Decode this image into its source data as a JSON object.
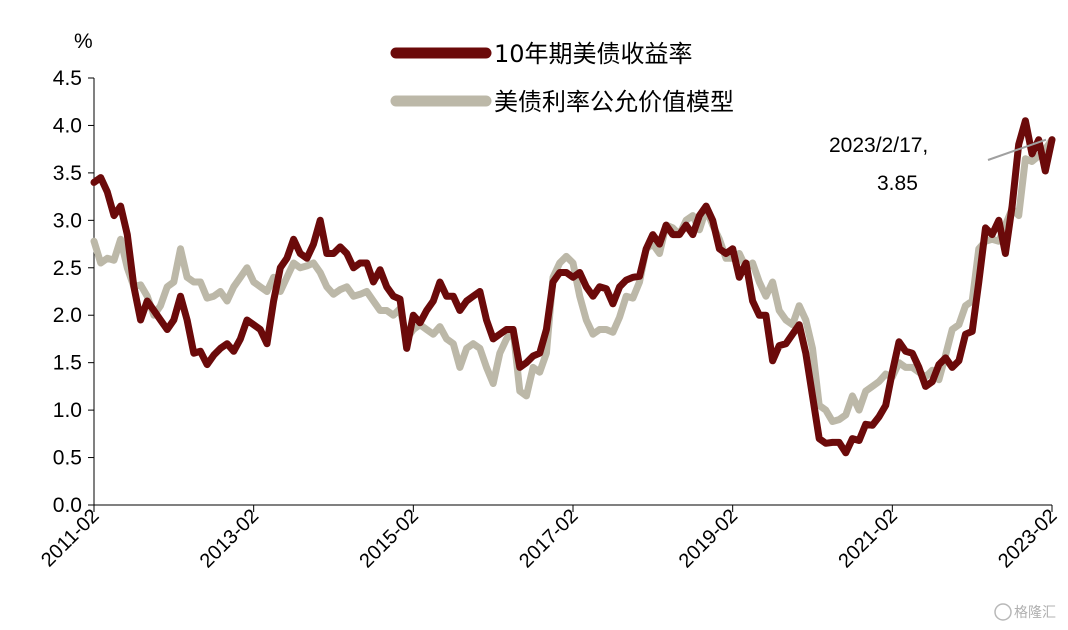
{
  "chart_data": {
    "type": "line",
    "y_unit": "%",
    "ylim": [
      0,
      4.5
    ],
    "y_ticks": [
      "0.0",
      "0.5",
      "1.0",
      "1.5",
      "2.0",
      "2.5",
      "3.0",
      "3.5",
      "4.0",
      "4.5"
    ],
    "x_start": "2011-02",
    "x_end": "2023-02",
    "x_ticks": [
      "2011-02",
      "2013-02",
      "2015-02",
      "2017-02",
      "2019-02",
      "2021-02",
      "2023-02"
    ],
    "grid": false,
    "legend_position": "top-center",
    "series": [
      {
        "name": "10年期美债收益率",
        "color": "#6b0a0a",
        "points": [
          [
            "2011-02",
            3.4
          ],
          [
            "2011-03",
            3.45
          ],
          [
            "2011-04",
            3.3
          ],
          [
            "2011-05",
            3.05
          ],
          [
            "2011-06",
            3.15
          ],
          [
            "2011-07",
            2.85
          ],
          [
            "2011-08",
            2.3
          ],
          [
            "2011-09",
            1.95
          ],
          [
            "2011-10",
            2.15
          ],
          [
            "2011-11",
            2.05
          ],
          [
            "2011-12",
            1.95
          ],
          [
            "2012-01",
            1.85
          ],
          [
            "2012-02",
            1.95
          ],
          [
            "2012-03",
            2.2
          ],
          [
            "2012-04",
            1.95
          ],
          [
            "2012-05",
            1.6
          ],
          [
            "2012-06",
            1.62
          ],
          [
            "2012-07",
            1.48
          ],
          [
            "2012-08",
            1.58
          ],
          [
            "2012-09",
            1.65
          ],
          [
            "2012-10",
            1.7
          ],
          [
            "2012-11",
            1.62
          ],
          [
            "2012-12",
            1.75
          ],
          [
            "2013-01",
            1.95
          ],
          [
            "2013-02",
            1.9
          ],
          [
            "2013-03",
            1.85
          ],
          [
            "2013-04",
            1.7
          ],
          [
            "2013-05",
            2.15
          ],
          [
            "2013-06",
            2.5
          ],
          [
            "2013-07",
            2.6
          ],
          [
            "2013-08",
            2.8
          ],
          [
            "2013-09",
            2.65
          ],
          [
            "2013-10",
            2.6
          ],
          [
            "2013-11",
            2.75
          ],
          [
            "2013-12",
            3.0
          ],
          [
            "2014-01",
            2.65
          ],
          [
            "2014-02",
            2.65
          ],
          [
            "2014-03",
            2.72
          ],
          [
            "2014-04",
            2.65
          ],
          [
            "2014-05",
            2.5
          ],
          [
            "2014-06",
            2.55
          ],
          [
            "2014-07",
            2.55
          ],
          [
            "2014-08",
            2.35
          ],
          [
            "2014-09",
            2.48
          ],
          [
            "2014-10",
            2.3
          ],
          [
            "2014-11",
            2.2
          ],
          [
            "2014-12",
            2.17
          ],
          [
            "2015-01",
            1.65
          ],
          [
            "2015-02",
            2.0
          ],
          [
            "2015-03",
            1.92
          ],
          [
            "2015-04",
            2.05
          ],
          [
            "2015-05",
            2.15
          ],
          [
            "2015-06",
            2.35
          ],
          [
            "2015-07",
            2.2
          ],
          [
            "2015-08",
            2.2
          ],
          [
            "2015-09",
            2.05
          ],
          [
            "2015-10",
            2.15
          ],
          [
            "2015-11",
            2.2
          ],
          [
            "2015-12",
            2.25
          ],
          [
            "2016-01",
            1.95
          ],
          [
            "2016-02",
            1.75
          ],
          [
            "2016-03",
            1.8
          ],
          [
            "2016-04",
            1.85
          ],
          [
            "2016-05",
            1.85
          ],
          [
            "2016-06",
            1.45
          ],
          [
            "2016-07",
            1.5
          ],
          [
            "2016-08",
            1.57
          ],
          [
            "2016-09",
            1.6
          ],
          [
            "2016-10",
            1.85
          ],
          [
            "2016-11",
            2.35
          ],
          [
            "2016-12",
            2.45
          ],
          [
            "2017-01",
            2.45
          ],
          [
            "2017-02",
            2.4
          ],
          [
            "2017-03",
            2.45
          ],
          [
            "2017-04",
            2.3
          ],
          [
            "2017-05",
            2.2
          ],
          [
            "2017-06",
            2.3
          ],
          [
            "2017-07",
            2.28
          ],
          [
            "2017-08",
            2.12
          ],
          [
            "2017-09",
            2.3
          ],
          [
            "2017-10",
            2.37
          ],
          [
            "2017-11",
            2.4
          ],
          [
            "2017-12",
            2.41
          ],
          [
            "2018-01",
            2.7
          ],
          [
            "2018-02",
            2.85
          ],
          [
            "2018-03",
            2.75
          ],
          [
            "2018-04",
            2.95
          ],
          [
            "2018-05",
            2.85
          ],
          [
            "2018-06",
            2.85
          ],
          [
            "2018-07",
            2.95
          ],
          [
            "2018-08",
            2.85
          ],
          [
            "2018-09",
            3.05
          ],
          [
            "2018-10",
            3.15
          ],
          [
            "2018-11",
            3.0
          ],
          [
            "2018-12",
            2.7
          ],
          [
            "2019-01",
            2.65
          ],
          [
            "2019-02",
            2.7
          ],
          [
            "2019-03",
            2.4
          ],
          [
            "2019-04",
            2.55
          ],
          [
            "2019-05",
            2.15
          ],
          [
            "2019-06",
            2.0
          ],
          [
            "2019-07",
            2.0
          ],
          [
            "2019-08",
            1.52
          ],
          [
            "2019-09",
            1.68
          ],
          [
            "2019-10",
            1.7
          ],
          [
            "2019-11",
            1.8
          ],
          [
            "2019-12",
            1.9
          ],
          [
            "2020-01",
            1.6
          ],
          [
            "2020-02",
            1.15
          ],
          [
            "2020-03",
            0.7
          ],
          [
            "2020-04",
            0.65
          ],
          [
            "2020-05",
            0.66
          ],
          [
            "2020-06",
            0.66
          ],
          [
            "2020-07",
            0.55
          ],
          [
            "2020-08",
            0.7
          ],
          [
            "2020-09",
            0.68
          ],
          [
            "2020-10",
            0.85
          ],
          [
            "2020-11",
            0.84
          ],
          [
            "2020-12",
            0.93
          ],
          [
            "2021-01",
            1.05
          ],
          [
            "2021-02",
            1.4
          ],
          [
            "2021-03",
            1.72
          ],
          [
            "2021-04",
            1.62
          ],
          [
            "2021-05",
            1.6
          ],
          [
            "2021-06",
            1.45
          ],
          [
            "2021-07",
            1.25
          ],
          [
            "2021-08",
            1.3
          ],
          [
            "2021-09",
            1.48
          ],
          [
            "2021-10",
            1.55
          ],
          [
            "2021-11",
            1.45
          ],
          [
            "2021-12",
            1.52
          ],
          [
            "2022-01",
            1.8
          ],
          [
            "2022-02",
            1.83
          ],
          [
            "2022-03",
            2.35
          ],
          [
            "2022-04",
            2.92
          ],
          [
            "2022-05",
            2.85
          ],
          [
            "2022-06",
            3.0
          ],
          [
            "2022-07",
            2.65
          ],
          [
            "2022-08",
            3.15
          ],
          [
            "2022-09",
            3.8
          ],
          [
            "2022-10",
            4.05
          ],
          [
            "2022-11",
            3.7
          ],
          [
            "2022-12",
            3.85
          ],
          [
            "2023-01",
            3.52
          ],
          [
            "2023-02",
            3.85
          ]
        ]
      },
      {
        "name": "美债利率公允价值模型",
        "color": "#bcb8a8",
        "points": [
          [
            "2011-02",
            2.78
          ],
          [
            "2011-03",
            2.55
          ],
          [
            "2011-04",
            2.6
          ],
          [
            "2011-05",
            2.58
          ],
          [
            "2011-06",
            2.8
          ],
          [
            "2011-07",
            2.5
          ],
          [
            "2011-08",
            2.3
          ],
          [
            "2011-09",
            2.32
          ],
          [
            "2011-10",
            2.2
          ],
          [
            "2011-11",
            2.0
          ],
          [
            "2011-12",
            2.1
          ],
          [
            "2012-01",
            2.3
          ],
          [
            "2012-02",
            2.35
          ],
          [
            "2012-03",
            2.7
          ],
          [
            "2012-04",
            2.4
          ],
          [
            "2012-05",
            2.35
          ],
          [
            "2012-06",
            2.35
          ],
          [
            "2012-07",
            2.18
          ],
          [
            "2012-08",
            2.2
          ],
          [
            "2012-09",
            2.25
          ],
          [
            "2012-10",
            2.15
          ],
          [
            "2012-11",
            2.3
          ],
          [
            "2012-12",
            2.4
          ],
          [
            "2013-01",
            2.5
          ],
          [
            "2013-02",
            2.35
          ],
          [
            "2013-03",
            2.3
          ],
          [
            "2013-04",
            2.25
          ],
          [
            "2013-05",
            2.4
          ],
          [
            "2013-06",
            2.25
          ],
          [
            "2013-07",
            2.4
          ],
          [
            "2013-08",
            2.55
          ],
          [
            "2013-09",
            2.5
          ],
          [
            "2013-10",
            2.52
          ],
          [
            "2013-11",
            2.55
          ],
          [
            "2013-12",
            2.45
          ],
          [
            "2014-01",
            2.3
          ],
          [
            "2014-02",
            2.22
          ],
          [
            "2014-03",
            2.27
          ],
          [
            "2014-04",
            2.3
          ],
          [
            "2014-05",
            2.2
          ],
          [
            "2014-06",
            2.22
          ],
          [
            "2014-07",
            2.25
          ],
          [
            "2014-08",
            2.15
          ],
          [
            "2014-09",
            2.05
          ],
          [
            "2014-10",
            2.05
          ],
          [
            "2014-11",
            2.0
          ],
          [
            "2014-12",
            2.07
          ],
          [
            "2015-01",
            1.75
          ],
          [
            "2015-02",
            1.85
          ],
          [
            "2015-03",
            1.9
          ],
          [
            "2015-04",
            1.85
          ],
          [
            "2015-05",
            1.8
          ],
          [
            "2015-06",
            1.88
          ],
          [
            "2015-07",
            1.75
          ],
          [
            "2015-08",
            1.7
          ],
          [
            "2015-09",
            1.45
          ],
          [
            "2015-10",
            1.65
          ],
          [
            "2015-11",
            1.7
          ],
          [
            "2015-12",
            1.65
          ],
          [
            "2016-01",
            1.45
          ],
          [
            "2016-02",
            1.28
          ],
          [
            "2016-03",
            1.6
          ],
          [
            "2016-04",
            1.75
          ],
          [
            "2016-05",
            1.85
          ],
          [
            "2016-06",
            1.2
          ],
          [
            "2016-07",
            1.15
          ],
          [
            "2016-08",
            1.45
          ],
          [
            "2016-09",
            1.4
          ],
          [
            "2016-10",
            1.6
          ],
          [
            "2016-11",
            2.4
          ],
          [
            "2016-12",
            2.55
          ],
          [
            "2017-01",
            2.62
          ],
          [
            "2017-02",
            2.55
          ],
          [
            "2017-03",
            2.2
          ],
          [
            "2017-04",
            1.95
          ],
          [
            "2017-05",
            1.8
          ],
          [
            "2017-06",
            1.85
          ],
          [
            "2017-07",
            1.85
          ],
          [
            "2017-08",
            1.82
          ],
          [
            "2017-09",
            1.98
          ],
          [
            "2017-10",
            2.2
          ],
          [
            "2017-11",
            2.18
          ],
          [
            "2017-12",
            2.35
          ],
          [
            "2018-01",
            2.7
          ],
          [
            "2018-02",
            2.75
          ],
          [
            "2018-03",
            2.65
          ],
          [
            "2018-04",
            2.95
          ],
          [
            "2018-05",
            2.92
          ],
          [
            "2018-06",
            2.85
          ],
          [
            "2018-07",
            3.0
          ],
          [
            "2018-08",
            3.05
          ],
          [
            "2018-09",
            2.9
          ],
          [
            "2018-10",
            3.12
          ],
          [
            "2018-11",
            2.95
          ],
          [
            "2018-12",
            2.8
          ],
          [
            "2019-01",
            2.6
          ],
          [
            "2019-02",
            2.6
          ],
          [
            "2019-03",
            2.65
          ],
          [
            "2019-04",
            2.5
          ],
          [
            "2019-05",
            2.55
          ],
          [
            "2019-06",
            2.35
          ],
          [
            "2019-07",
            2.2
          ],
          [
            "2019-08",
            2.35
          ],
          [
            "2019-09",
            2.05
          ],
          [
            "2019-10",
            1.95
          ],
          [
            "2019-11",
            1.9
          ],
          [
            "2019-12",
            2.1
          ],
          [
            "2020-01",
            1.95
          ],
          [
            "2020-02",
            1.65
          ],
          [
            "2020-03",
            1.05
          ],
          [
            "2020-04",
            1.0
          ],
          [
            "2020-05",
            0.88
          ],
          [
            "2020-06",
            0.9
          ],
          [
            "2020-07",
            0.95
          ],
          [
            "2020-08",
            1.15
          ],
          [
            "2020-09",
            1.0
          ],
          [
            "2020-10",
            1.2
          ],
          [
            "2020-11",
            1.25
          ],
          [
            "2020-12",
            1.3
          ],
          [
            "2021-01",
            1.38
          ],
          [
            "2021-02",
            1.35
          ],
          [
            "2021-03",
            1.5
          ],
          [
            "2021-04",
            1.45
          ],
          [
            "2021-05",
            1.45
          ],
          [
            "2021-06",
            1.4
          ],
          [
            "2021-07",
            1.35
          ],
          [
            "2021-08",
            1.42
          ],
          [
            "2021-09",
            1.32
          ],
          [
            "2021-10",
            1.58
          ],
          [
            "2021-11",
            1.85
          ],
          [
            "2021-12",
            1.9
          ],
          [
            "2022-01",
            2.1
          ],
          [
            "2022-02",
            2.15
          ],
          [
            "2022-03",
            2.7
          ],
          [
            "2022-04",
            2.78
          ],
          [
            "2022-05",
            2.8
          ],
          [
            "2022-06",
            2.78
          ],
          [
            "2022-07",
            2.95
          ],
          [
            "2022-08",
            3.12
          ],
          [
            "2022-09",
            3.05
          ],
          [
            "2022-10",
            3.65
          ],
          [
            "2022-11",
            3.62
          ],
          [
            "2022-12",
            3.68
          ],
          [
            "2023-01",
            3.75
          ],
          [
            "2023-02",
            3.85
          ]
        ]
      }
    ],
    "annotation": {
      "line1": "2023/2/17,",
      "line2": "3.85",
      "date": "2023-02",
      "value": 3.85
    }
  },
  "watermark": "格隆汇"
}
